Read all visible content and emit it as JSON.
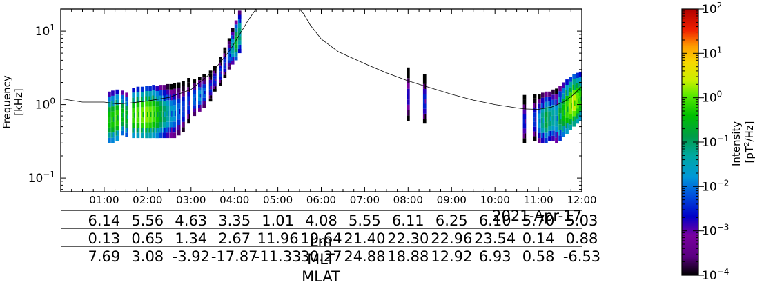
{
  "chart_data": {
    "type": "heatmap",
    "title": "",
    "ylabel": "Frequency\n[kHz]",
    "yscale": "log",
    "ylim": [
      0.065,
      20
    ],
    "y_ticks": [
      {
        "value": 0.1,
        "mant": "10",
        "exp": "−1"
      },
      {
        "value": 1,
        "mant": "10",
        "exp": "0"
      },
      {
        "value": 10,
        "mant": "10",
        "exp": "1"
      }
    ],
    "xlim_hours": [
      0,
      12
    ],
    "x_tick_labels": [
      "01:00",
      "02:00",
      "03:00",
      "04:00",
      "05:00",
      "06:00",
      "07:00",
      "08:00",
      "09:00",
      "10:00",
      "11:00",
      "12:00"
    ],
    "date_label": "2021-Apr-17",
    "ephemeris_rows": [
      {
        "label": "",
        "values": [
          "6.14",
          "5.56",
          "4.63",
          "3.35",
          "1.01",
          "4.08",
          "5.55",
          "6.11",
          "6.25",
          "6.10",
          "5.70",
          "5.03"
        ]
      },
      {
        "label": "",
        "values": [
          "0.13",
          "0.65",
          "1.34",
          "2.67",
          "11.96",
          "19.64",
          "21.40",
          "22.30",
          "22.96",
          "23.54",
          "0.14",
          "0.88"
        ]
      },
      {
        "label": "",
        "values": [
          "7.69",
          "3.08",
          "-3.92",
          "-17.87",
          "-11.33",
          "30.27",
          "24.88",
          "18.88",
          "12.92",
          "6.93",
          "0.58",
          "-6.53"
        ]
      }
    ],
    "row_axis_labels": [
      "Lm",
      "MLT",
      "MLAT"
    ],
    "colorbar": {
      "label_line1": "Intensity",
      "label_unit_pre": "[pT",
      "label_unit_sup": "2",
      "label_unit_post": "/Hz]",
      "scale": "log",
      "range": [
        0.0001,
        100
      ],
      "ticks": [
        {
          "value": 100,
          "mant": "10",
          "exp": "2"
        },
        {
          "value": 10,
          "mant": "10",
          "exp": "1"
        },
        {
          "value": 1,
          "mant": "10",
          "exp": "0"
        },
        {
          "value": 0.1,
          "mant": "10",
          "exp": "−1"
        },
        {
          "value": 0.01,
          "mant": "10",
          "exp": "−2"
        },
        {
          "value": 0.001,
          "mant": "10",
          "exp": "−3"
        },
        {
          "value": 0.0001,
          "mant": "10",
          "exp": "−4"
        }
      ],
      "colormap": "nipy_spectral"
    },
    "reference_line": {
      "hours": [
        0,
        0.5,
        1.0,
        1.3,
        1.6,
        2.0,
        2.5,
        3.0,
        3.5,
        3.9,
        4.1,
        4.3,
        4.4,
        4.5,
        5.5,
        5.6,
        5.75,
        6.0,
        6.4,
        7.0,
        7.5,
        8.0,
        8.5,
        9.0,
        9.5,
        10.0,
        10.5,
        10.7,
        11.0,
        11.3,
        11.6,
        11.8,
        12.0
      ],
      "khz": [
        1.2,
        1.08,
        1.08,
        1.02,
        1.05,
        1.12,
        1.25,
        1.6,
        2.8,
        5.5,
        8.6,
        13.5,
        16.5,
        20,
        20,
        17.0,
        12.0,
        7.8,
        5.2,
        3.6,
        2.7,
        2.1,
        1.7,
        1.38,
        1.15,
        1.0,
        0.9,
        0.87,
        0.86,
        0.92,
        1.1,
        1.35,
        1.75
      ]
    },
    "emissions": [
      {
        "hour": 1.12,
        "fmin": 0.3,
        "fmax": 1.5,
        "peak": 0.5
      },
      {
        "hour": 1.2,
        "fmin": 0.3,
        "fmax": 1.55,
        "peak": 0.6
      },
      {
        "hour": 1.3,
        "fmin": 0.32,
        "fmax": 1.6,
        "peak": 0.8
      },
      {
        "hour": 1.42,
        "fmin": 0.38,
        "fmax": 1.55,
        "peak": 0.4
      },
      {
        "hour": 1.52,
        "fmin": 0.36,
        "fmax": 1.45,
        "peak": 0.3
      },
      {
        "hour": 1.68,
        "fmin": 0.35,
        "fmax": 1.7,
        "peak": 0.9
      },
      {
        "hour": 1.78,
        "fmin": 0.35,
        "fmax": 1.75,
        "peak": 1.2
      },
      {
        "hour": 1.88,
        "fmin": 0.35,
        "fmax": 1.75,
        "peak": 1.6
      },
      {
        "hour": 1.98,
        "fmin": 0.35,
        "fmax": 1.8,
        "peak": 2.0
      },
      {
        "hour": 2.06,
        "fmin": 0.35,
        "fmax": 1.8,
        "peak": 1.5
      },
      {
        "hour": 2.14,
        "fmin": 0.35,
        "fmax": 1.85,
        "peak": 1.1
      },
      {
        "hour": 2.22,
        "fmin": 0.35,
        "fmax": 1.8,
        "peak": 0.6
      },
      {
        "hour": 2.3,
        "fmin": 0.35,
        "fmax": 1.85,
        "peak": 0.25
      },
      {
        "hour": 2.38,
        "fmin": 0.35,
        "fmax": 1.85,
        "peak": 0.12
      },
      {
        "hour": 2.46,
        "fmin": 0.35,
        "fmax": 1.9,
        "peak": 0.06
      },
      {
        "hour": 2.54,
        "fmin": 0.35,
        "fmax": 1.9,
        "peak": 0.03
      },
      {
        "hour": 2.62,
        "fmin": 0.35,
        "fmax": 1.95,
        "peak": 0.02
      },
      {
        "hour": 2.72,
        "fmin": 0.38,
        "fmax": 2.0,
        "peak": 0.01
      },
      {
        "hour": 2.82,
        "fmin": 0.42,
        "fmax": 2.1,
        "peak": 0.006
      },
      {
        "hour": 2.95,
        "fmin": 0.55,
        "fmax": 2.3,
        "peak": 0.005
      },
      {
        "hour": 3.08,
        "fmin": 0.7,
        "fmax": 2.2,
        "peak": 0.01
      },
      {
        "hour": 3.2,
        "fmin": 0.8,
        "fmax": 2.4,
        "peak": 0.02
      },
      {
        "hour": 3.3,
        "fmin": 0.9,
        "fmax": 2.6,
        "peak": 0.01
      },
      {
        "hour": 3.45,
        "fmin": 1.1,
        "fmax": 2.9,
        "peak": 0.004
      },
      {
        "hour": 3.55,
        "fmin": 1.5,
        "fmax": 3.4,
        "peak": 0.004
      },
      {
        "hour": 3.68,
        "fmin": 1.8,
        "fmax": 4.5,
        "peak": 0.005
      },
      {
        "hour": 3.78,
        "fmin": 2.3,
        "fmax": 6.0,
        "peak": 0.005
      },
      {
        "hour": 3.88,
        "fmin": 3.0,
        "fmax": 8.0,
        "peak": 0.01
      },
      {
        "hour": 3.96,
        "fmin": 3.5,
        "fmax": 11.0,
        "peak": 0.05
      },
      {
        "hour": 4.04,
        "fmin": 4.0,
        "fmax": 14.0,
        "peak": 0.3
      },
      {
        "hour": 4.12,
        "fmin": 5.0,
        "fmax": 19.0,
        "peak": 0.1
      },
      {
        "hour": 8.0,
        "fmin": 0.6,
        "fmax": 3.2,
        "peak": 0.002
      },
      {
        "hour": 8.38,
        "fmin": 0.55,
        "fmax": 2.6,
        "peak": 0.004
      },
      {
        "hour": 10.68,
        "fmin": 0.3,
        "fmax": 1.35,
        "peak": 0.003
      },
      {
        "hour": 10.92,
        "fmin": 0.32,
        "fmax": 1.4,
        "peak": 0.005
      },
      {
        "hour": 11.02,
        "fmin": 0.3,
        "fmax": 1.4,
        "peak": 0.02
      },
      {
        "hour": 11.1,
        "fmin": 0.3,
        "fmax": 1.45,
        "peak": 0.08
      },
      {
        "hour": 11.18,
        "fmin": 0.3,
        "fmax": 1.5,
        "peak": 0.2
      },
      {
        "hour": 11.26,
        "fmin": 0.32,
        "fmax": 1.5,
        "peak": 0.1
      },
      {
        "hour": 11.34,
        "fmin": 0.32,
        "fmax": 1.6,
        "peak": 0.06
      },
      {
        "hour": 11.42,
        "fmin": 0.3,
        "fmax": 1.65,
        "peak": 0.04
      },
      {
        "hour": 11.5,
        "fmin": 0.32,
        "fmax": 1.8,
        "peak": 0.2
      },
      {
        "hour": 11.58,
        "fmin": 0.36,
        "fmax": 2.0,
        "peak": 0.5
      },
      {
        "hour": 11.66,
        "fmin": 0.4,
        "fmax": 2.2,
        "peak": 1.0
      },
      {
        "hour": 11.74,
        "fmin": 0.45,
        "fmax": 2.4,
        "peak": 2.0
      },
      {
        "hour": 11.82,
        "fmin": 0.5,
        "fmax": 2.6,
        "peak": 3.0
      },
      {
        "hour": 11.9,
        "fmin": 0.55,
        "fmax": 2.7,
        "peak": 1.5
      },
      {
        "hour": 11.97,
        "fmin": 0.6,
        "fmax": 2.8,
        "peak": 0.8
      }
    ]
  }
}
